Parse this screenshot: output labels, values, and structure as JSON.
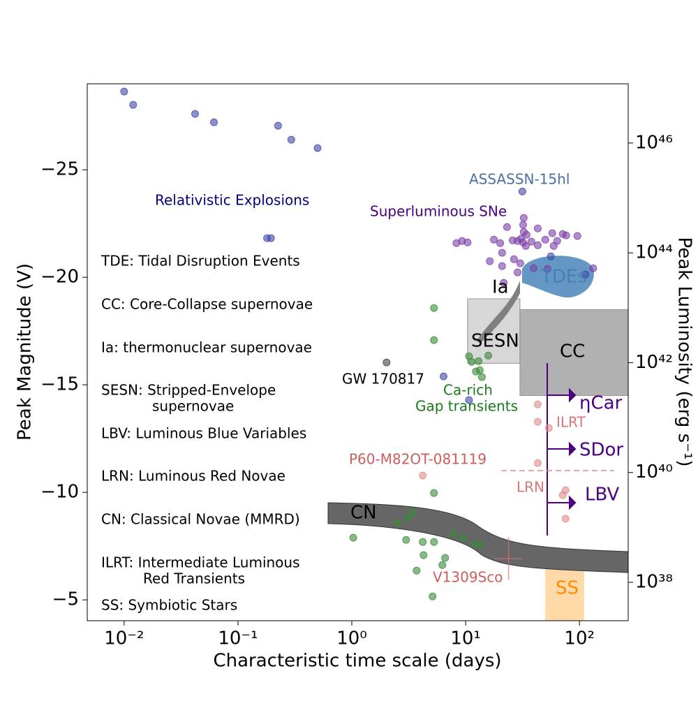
{
  "chart_data": {
    "type": "scatter",
    "xlabel": "Characteristic time scale (days)",
    "ylabel": "Peak Magnitude (V)",
    "y2label": "Peak Luminosity (erg s⁻¹)",
    "xscale": "log",
    "xlim": [
      0.00474,
      268
    ],
    "xticks": [
      {
        "value": 0.01,
        "label": "10⁻²"
      },
      {
        "value": 0.1,
        "label": "10⁻¹"
      },
      {
        "value": 1,
        "label": "10⁰"
      },
      {
        "value": 10,
        "label": "10¹"
      },
      {
        "value": 100,
        "label": "10²"
      }
    ],
    "ylim": [
      -4.03,
      -29.0
    ],
    "yticks": [
      {
        "value": -25,
        "label": "−25"
      },
      {
        "value": -20,
        "label": "−20"
      },
      {
        "value": -15,
        "label": "−15"
      },
      {
        "value": -10,
        "label": "−10"
      },
      {
        "value": -5,
        "label": "−5"
      }
    ],
    "y2scale": "log",
    "y2lim": [
      2e+37,
      1.2e+47
    ],
    "y2ticks": [
      {
        "value": 1e+46,
        "label": "10⁴⁶"
      },
      {
        "value": 1e+44,
        "label": "10⁴⁴"
      },
      {
        "value": 1e+42,
        "label": "10⁴²"
      },
      {
        "value": 1e+40,
        "label": "10⁴⁰"
      },
      {
        "value": 1e+38,
        "label": "10³⁸"
      }
    ],
    "series": [
      {
        "color": "#3f47a8",
        "x": [
          0.01,
          0.012,
          0.042,
          0.0615,
          0.225,
          0.294,
          0.5,
          0.18,
          0.195,
          6.4,
          10.7,
          31.5,
          56,
          113
        ],
        "values": [
          -28.64,
          -28.02,
          -27.6,
          -27.21,
          -27.05,
          -26.4,
          -26.01,
          -21.82,
          -21.82,
          -15.39,
          -14.29,
          -23.99,
          -20.97,
          -20.13
        ]
      },
      {
        "color": "#7b3fa8",
        "x": [
          32.4,
          32.0,
          23.1,
          43.0,
          57.7,
          71.3,
          95.9,
          76.5,
          32.4,
          34.3,
          30.6,
          17.7,
          25.9,
          28.6,
          37.8,
          50.1,
          20.1,
          32.0,
          33.8,
          43.0,
          63.7,
          59.4,
          9.3,
          8.3,
          10.4,
          20.9,
          26.6,
          16.3,
          30.2,
          20.9,
          28.6,
          21.6,
          132,
          39.5,
          52.3
        ],
        "values": [
          -22.76,
          -22.44,
          -22.34,
          -22.27,
          -22.05,
          -22.01,
          -21.92,
          -21.95,
          -22.11,
          -21.98,
          -21.79,
          -21.75,
          -21.72,
          -21.69,
          -21.66,
          -21.75,
          -21.59,
          -21.62,
          -21.46,
          -21.49,
          -21.69,
          -21.46,
          -21.69,
          -21.59,
          -21.62,
          -21.14,
          -20.84,
          -20.75,
          -20.65,
          -20.52,
          -20.23,
          -19.74,
          -20.42,
          -20.42,
          -20.39
        ]
      },
      {
        "color": "#3a8a3a",
        "x": [
          5.27,
          5.27,
          10.7,
          11.3,
          13.0,
          15.8,
          12.3,
          13.3,
          13.9,
          5.27,
          1.03,
          2.5,
          3.09,
          3.45,
          3.0,
          4.2,
          5.27,
          4.27,
          6.6,
          6.24,
          3.71,
          5.12,
          7.93,
          9.66,
          11.9,
          13.5
        ],
        "values": [
          -18.57,
          -17.08,
          -16.33,
          -16.07,
          -16.1,
          -16.36,
          -15.62,
          -15.68,
          -15.36,
          -9.97,
          -7.89,
          -8.6,
          -8.83,
          -9.09,
          -7.79,
          -7.69,
          -7.69,
          -7.08,
          -6.95,
          -6.62,
          -6.36,
          -5.16,
          -8.08,
          -7.86,
          -7.6,
          -7.56
        ]
      },
      {
        "color": "#e08a8a",
        "x": [
          43.0,
          43.0,
          53.8,
          43.0,
          4.2,
          75.5,
          71.3,
          75.5
        ],
        "values": [
          -14.09,
          -13.28,
          -12.99,
          -11.36,
          -10.78,
          -10.1,
          -9.87,
          -8.77
        ]
      },
      {
        "color": "#404040",
        "x": [
          2.02
        ],
        "values": [
          -16.04
        ]
      },
      {
        "color": "#e07070",
        "x": [
          23.8
        ],
        "values": [
          -6.92
        ],
        "yerr": [
          1.0
        ]
      }
    ],
    "regions": [
      {
        "x": [
          10.4,
          30
        ],
        "y": [
          -19,
          -16
        ],
        "color": "#d3d3d3"
      },
      {
        "x": [
          30,
          268
        ],
        "y": [
          -18.5,
          -14.5
        ],
        "color": "#a9a9a9"
      },
      {
        "x": [
          50,
          110
        ],
        "y": [
          -7,
          -4.03
        ],
        "color": "#ffd59e"
      }
    ],
    "annotations": [
      "Relativistic Explosions",
      "ASSASSN-15hl",
      "Superluminous SNe",
      "TDE: Tidal Disruption Events",
      "CC: Core-Collapse supernovae",
      "Ia: thermonuclear supernovae",
      "SESN: Stripped-Envelope",
      "supernovae",
      "LBV: Luminous Blue Variables",
      "LRN: Luminous Red Novae",
      "CN: Classical Novae (MMRD)",
      "ILRT: Intermediate Luminous",
      "Red Transients",
      "SS: Symbiotic Stars",
      "GW 170817",
      "Ca-rich",
      "Gap transients",
      "P60-M82OT-081119",
      "ILRT",
      "LRN",
      "V1309Sco",
      "CN",
      "Ia",
      "SESN",
      "CC",
      "TDEs",
      "ηCar",
      "SDor",
      "LBV",
      "SS"
    ]
  }
}
